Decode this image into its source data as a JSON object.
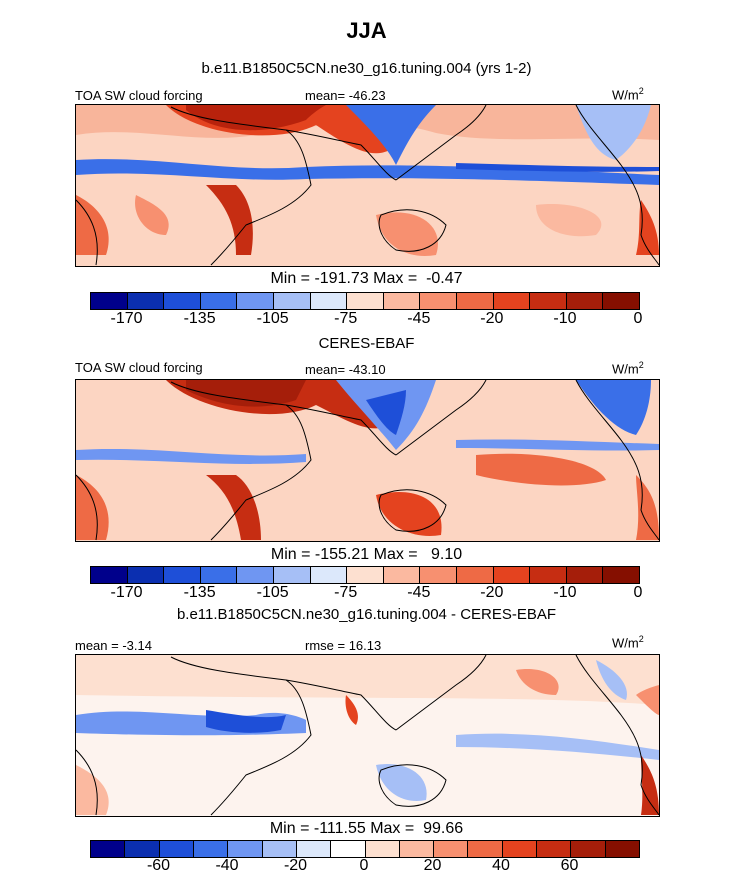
{
  "page": {
    "title": "JJA",
    "subtitle": "b.e11.B1850C5CN.ne30_g16.tuning.004 (yrs 1-2)"
  },
  "panels": [
    {
      "label": "TOA SW cloud forcing",
      "stat_text": "mean= -46.23",
      "units_base": "W/m",
      "units_exp": "2",
      "minmax": "Min = -191.73 Max =  -0.47",
      "colorbar_ticks": [
        "-170",
        "-135",
        "-105",
        "-75",
        "-45",
        "-20",
        "-10",
        "0"
      ],
      "colors": [
        "#00008b",
        "#0b2fb0",
        "#1e4fd8",
        "#3a6fe8",
        "#6f96f2",
        "#a6bff6",
        "#dce8fb",
        "#fde0d0",
        "#fbb9a0",
        "#f79070",
        "#ee6a45",
        "#e4431f",
        "#c62d12",
        "#a51e0a",
        "#850f00"
      ]
    },
    {
      "heading": "CERES-EBAF",
      "label": "TOA SW cloud forcing",
      "stat_text": "mean= -43.10",
      "units_base": "W/m",
      "units_exp": "2",
      "minmax": "Min = -155.21 Max =   9.10",
      "colorbar_ticks": [
        "-170",
        "-135",
        "-105",
        "-75",
        "-45",
        "-20",
        "-10",
        "0"
      ],
      "colors": [
        "#00008b",
        "#0b2fb0",
        "#1e4fd8",
        "#3a6fe8",
        "#6f96f2",
        "#a6bff6",
        "#dce8fb",
        "#fde0d0",
        "#fbb9a0",
        "#f79070",
        "#ee6a45",
        "#e4431f",
        "#c62d12",
        "#a51e0a",
        "#850f00"
      ]
    },
    {
      "heading": "b.e11.B1850C5CN.ne30_g16.tuning.004 - CERES-EBAF",
      "mean_text": "mean = -3.14",
      "rmse_text": "rmse = 16.13",
      "units_base": "W/m",
      "units_exp": "2",
      "minmax": "Min = -111.55 Max =  99.66",
      "colorbar_ticks": [
        "-60",
        "-40",
        "-20",
        "0",
        "20",
        "40",
        "60"
      ],
      "colors": [
        "#00008b",
        "#0b2fb0",
        "#1e4fd8",
        "#3a6fe8",
        "#6f96f2",
        "#a6bff6",
        "#dce8fb",
        "#ffffff",
        "#fde0d0",
        "#fbb9a0",
        "#f79070",
        "#ee6a45",
        "#e4431f",
        "#c62d12",
        "#a51e0a",
        "#850f00"
      ]
    }
  ]
}
